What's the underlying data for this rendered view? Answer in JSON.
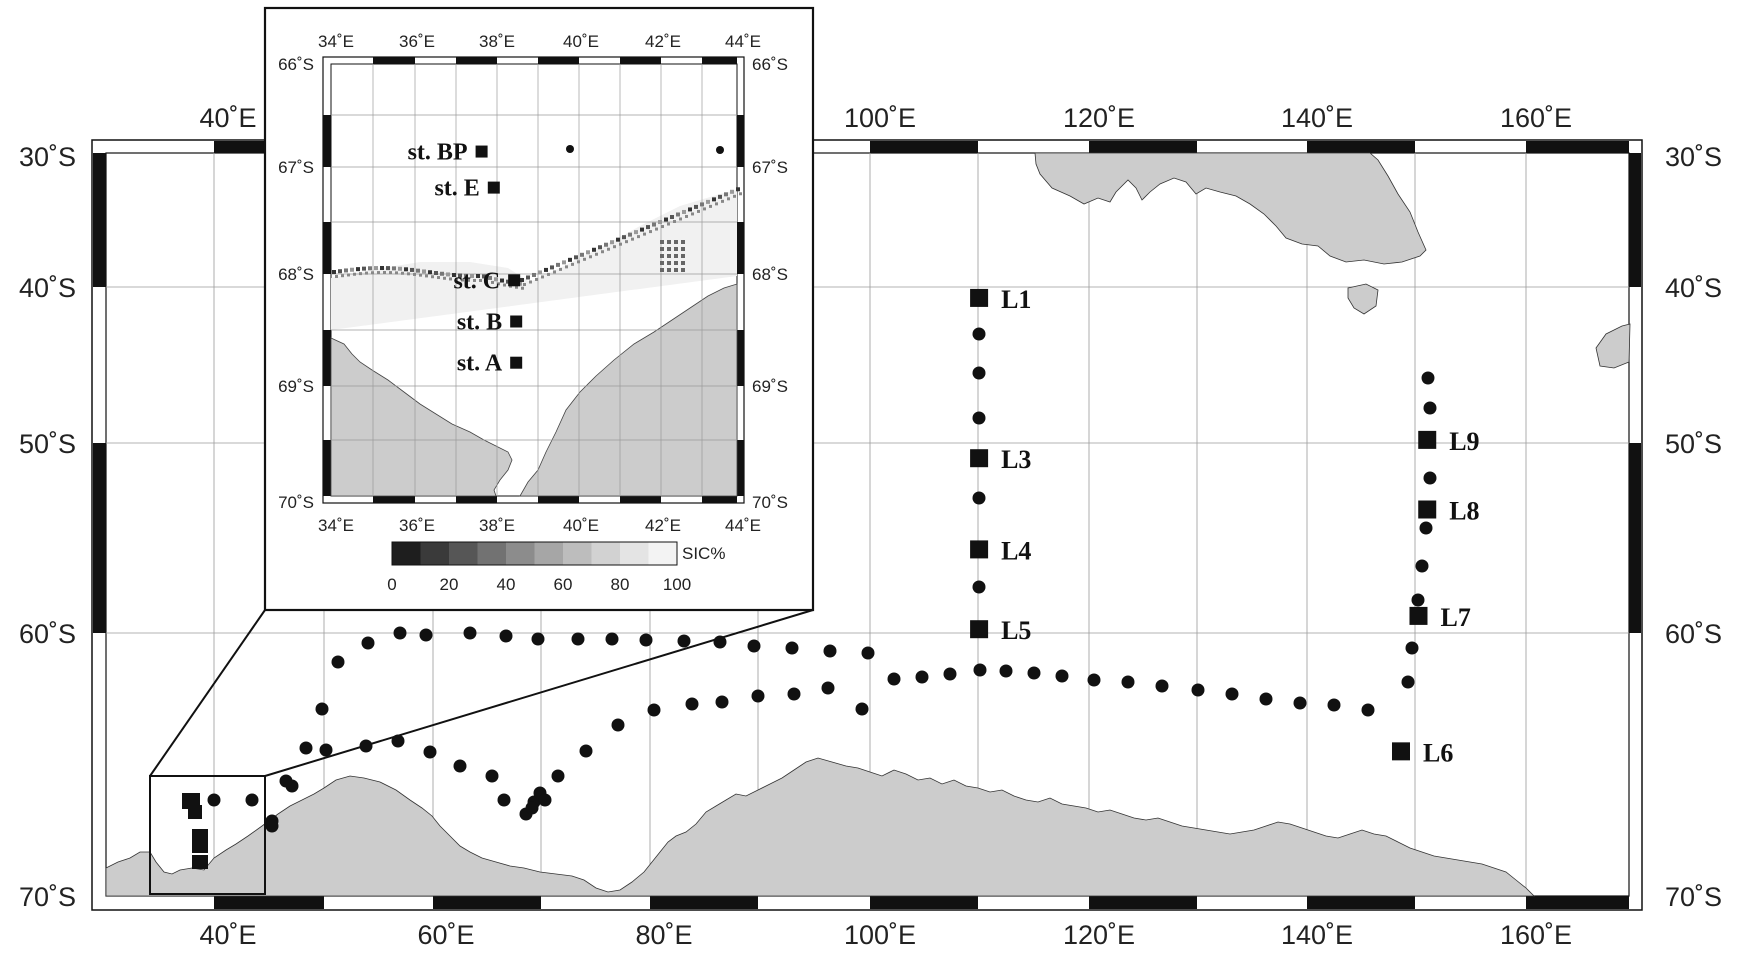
{
  "main_map": {
    "lon_ticks": [
      "40˚E",
      "60˚E",
      "80˚E",
      "100˚E",
      "120˚E",
      "140˚E",
      "160˚E"
    ],
    "lat_ticks": [
      "30˚S",
      "40˚S",
      "50˚S",
      "60˚S",
      "70˚S"
    ],
    "stations": [
      {
        "label": "L1",
        "lon": 110,
        "lat": -40.7
      },
      {
        "label": "L3",
        "lon": 110,
        "lat": -50.8
      },
      {
        "label": "L4",
        "lon": 110,
        "lat": -55.6
      },
      {
        "label": "L5",
        "lon": 110,
        "lat": -59.8
      },
      {
        "label": "L6",
        "lon": 148.6,
        "lat": -64.5
      },
      {
        "label": "L7",
        "lon": 150.2,
        "lat": -59.1
      },
      {
        "label": "L8",
        "lon": 151,
        "lat": -53.5
      },
      {
        "label": "L9",
        "lon": 151,
        "lat": -49.8
      }
    ],
    "colors": {
      "land": "#cccccc",
      "frame": "#111111",
      "marker": "#111111"
    }
  },
  "inset_map": {
    "lon_ticks": [
      "34˚E",
      "36˚E",
      "38˚E",
      "40˚E",
      "42˚E",
      "44˚E"
    ],
    "lat_ticks": [
      "66˚S",
      "67˚S",
      "68˚S",
      "69˚S",
      "70˚S"
    ],
    "stations": [
      {
        "label": "st. BP",
        "lon": 37.7,
        "lat": -66.85
      },
      {
        "label": "st. E",
        "lon": 38.0,
        "lat": -67.2
      },
      {
        "label": "st. C",
        "lon": 38.5,
        "lat": -68.1
      },
      {
        "label": "st. B",
        "lon": 38.55,
        "lat": -68.5
      },
      {
        "label": "st. A",
        "lon": 38.55,
        "lat": -68.9
      }
    ],
    "colorbar": {
      "title": "SIC%",
      "ticks": [
        "0",
        "20",
        "40",
        "60",
        "80",
        "100"
      ],
      "colors": [
        "#1e1e1e",
        "#3a3a3a",
        "#565656",
        "#727272",
        "#8c8c8c",
        "#a6a6a6",
        "#bdbdbd",
        "#d2d2d2",
        "#e4e4e4",
        "#f3f3f3"
      ]
    }
  }
}
